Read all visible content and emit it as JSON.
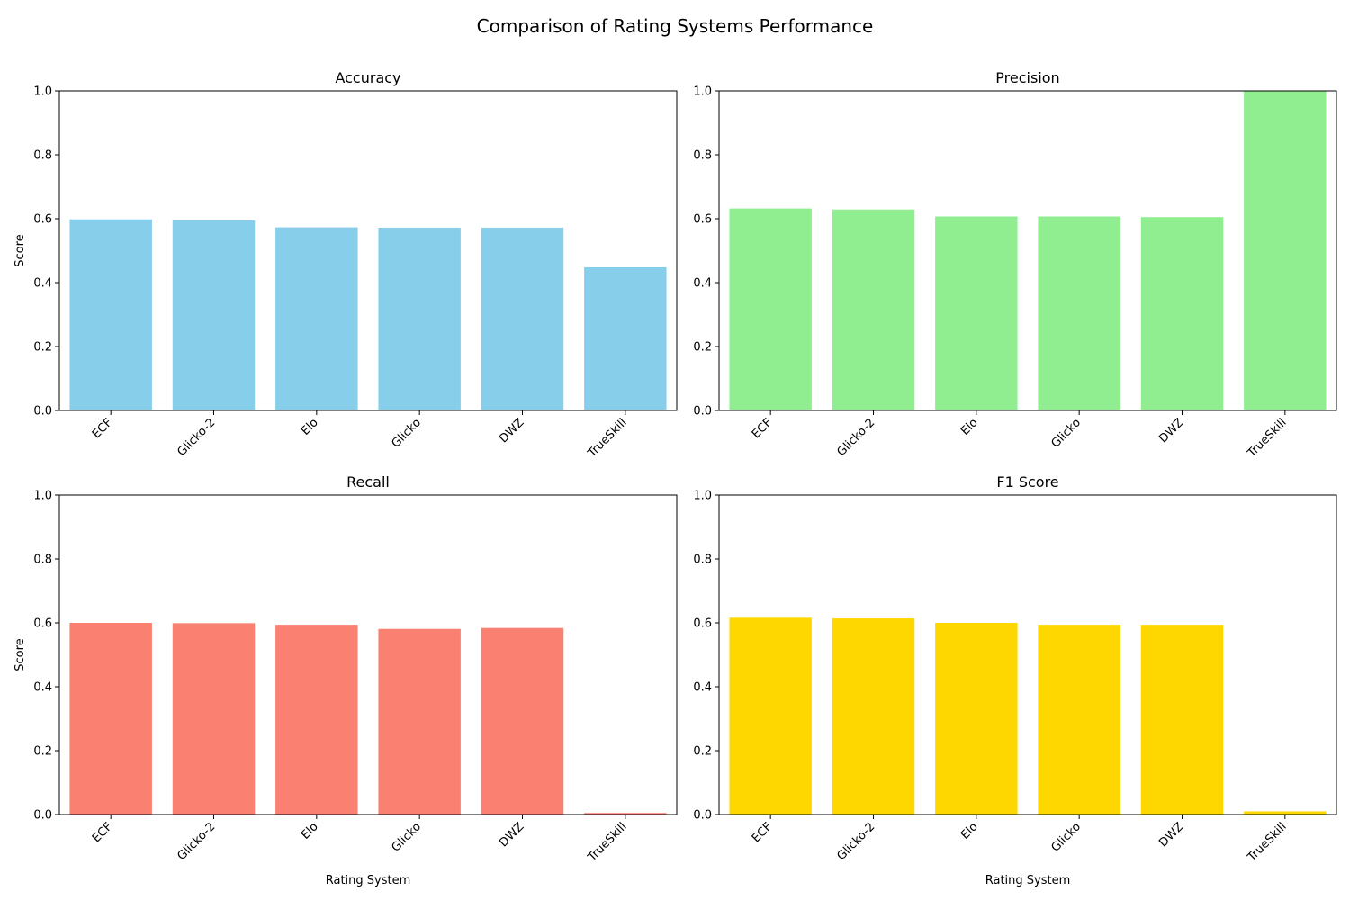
{
  "figure": {
    "title": "Comparison of Rating Systems Performance"
  },
  "chart_data": [
    {
      "type": "bar",
      "title": "Accuracy",
      "categories": [
        "ECF",
        "Glicko-2",
        "Elo",
        "Glicko",
        "DWZ",
        "TrueSkill"
      ],
      "values": [
        0.598,
        0.595,
        0.573,
        0.572,
        0.572,
        0.448
      ],
      "xlabel": "",
      "ylabel": "Score",
      "ylim": [
        0,
        1.0
      ],
      "yticks": [
        "0.0",
        "0.2",
        "0.4",
        "0.6",
        "0.8",
        "1.0"
      ],
      "color": "#87CEEB",
      "grid": false
    },
    {
      "type": "bar",
      "title": "Precision",
      "categories": [
        "ECF",
        "Glicko-2",
        "Elo",
        "Glicko",
        "DWZ",
        "TrueSkill"
      ],
      "values": [
        0.632,
        0.629,
        0.607,
        0.607,
        0.605,
        1.0
      ],
      "xlabel": "",
      "ylabel": "",
      "ylim": [
        0,
        1.0
      ],
      "yticks": [
        "0.0",
        "0.2",
        "0.4",
        "0.6",
        "0.8",
        "1.0"
      ],
      "color": "#90EE90",
      "grid": false
    },
    {
      "type": "bar",
      "title": "Recall",
      "categories": [
        "ECF",
        "Glicko-2",
        "Elo",
        "Glicko",
        "DWZ",
        "TrueSkill"
      ],
      "values": [
        0.6,
        0.599,
        0.594,
        0.581,
        0.584,
        0.005
      ],
      "xlabel": "Rating System",
      "ylabel": "Score",
      "ylim": [
        0,
        1.0
      ],
      "yticks": [
        "0.0",
        "0.2",
        "0.4",
        "0.6",
        "0.8",
        "1.0"
      ],
      "color": "#FA8072",
      "grid": false
    },
    {
      "type": "bar",
      "title": "F1 Score",
      "categories": [
        "ECF",
        "Glicko-2",
        "Elo",
        "Glicko",
        "DWZ",
        "TrueSkill"
      ],
      "values": [
        0.616,
        0.614,
        0.6,
        0.594,
        0.594,
        0.01
      ],
      "xlabel": "Rating System",
      "ylabel": "",
      "ylim": [
        0,
        1.0
      ],
      "yticks": [
        "0.0",
        "0.2",
        "0.4",
        "0.6",
        "0.8",
        "1.0"
      ],
      "color": "#FFD700",
      "grid": false
    }
  ]
}
